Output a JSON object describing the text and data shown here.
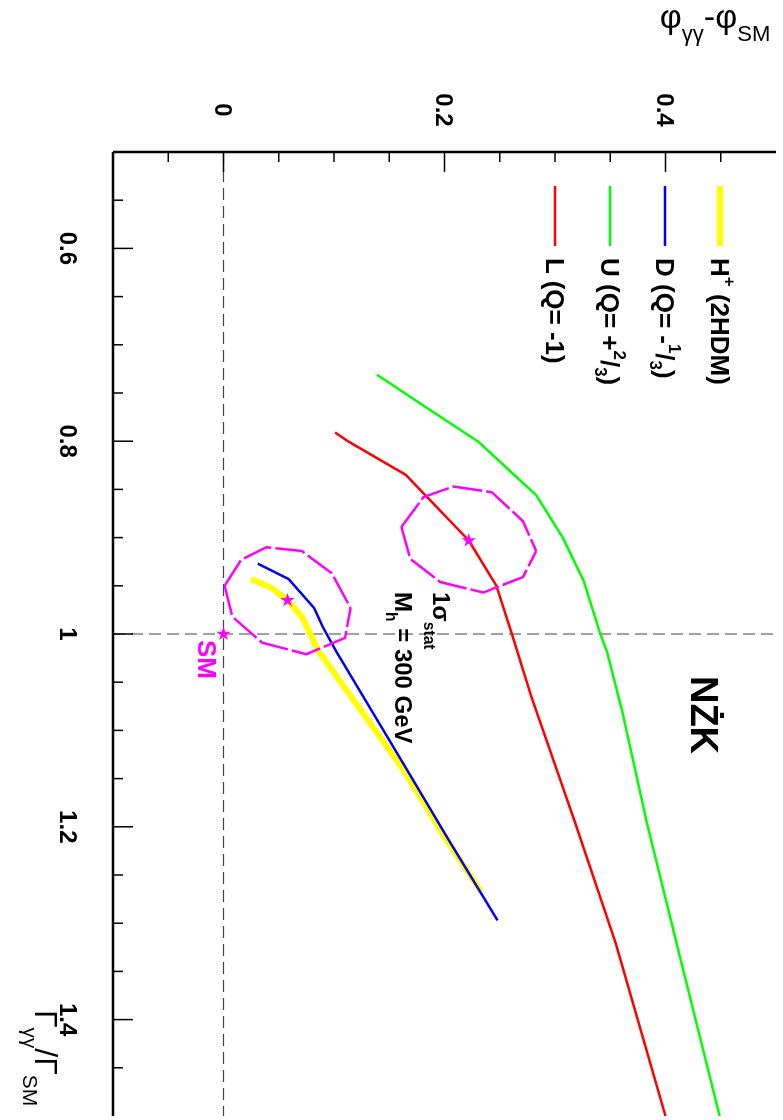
{
  "chart_data": {
    "type": "line",
    "xlabel": "φ$_{γγ}$-φ$_{SM}$",
    "ylabel": "Γ$_{γγ}$/Γ$_{SM}$",
    "xlim": [
      -0.1,
      0.5
    ],
    "ylim": [
      1.5,
      0.5
    ],
    "xticks": [
      {
        "value": -0.05,
        "label": null
      },
      0,
      {
        "value": 0.05,
        "label": null
      },
      {
        "value": 0.1,
        "label": null
      },
      {
        "value": 0.15,
        "label": null
      },
      0.2,
      {
        "value": 0.25,
        "label": null
      },
      {
        "value": 0.3,
        "label": null
      },
      {
        "value": 0.35,
        "label": null
      },
      0.4,
      {
        "value": 0.45,
        "label": null
      }
    ],
    "yticks": [
      {
        "value": 0.55,
        "label": null
      },
      0.6,
      {
        "value": 0.65,
        "label": null
      },
      {
        "value": 0.7,
        "label": null
      },
      {
        "value": 0.75,
        "label": null
      },
      0.8,
      {
        "value": 0.85,
        "label": null
      },
      {
        "value": 0.9,
        "label": null
      },
      {
        "value": 0.95,
        "label": null
      },
      1,
      {
        "value": 1.05,
        "label": null
      },
      {
        "value": 1.1,
        "label": null
      },
      {
        "value": 1.15,
        "label": null
      },
      1.2,
      {
        "value": 1.25,
        "label": null
      },
      {
        "value": 1.3,
        "label": null
      },
      {
        "value": 1.35,
        "label": null
      },
      1.4,
      {
        "value": 1.45,
        "label": null
      }
    ],
    "grid": false,
    "legend": "top right",
    "marker": "none",
    "line_style": "solid",
    "ref_lines": [
      {
        "axis": "y",
        "value": 1,
        "color": "#444444",
        "line_style": "dashed"
      },
      {
        "axis": "x",
        "value": 0,
        "color": "#444444",
        "line_style": "dashed"
      }
    ],
    "annotations": [
      "NŻK",
      "1σ$_{stat}$",
      "M$_{h}$ = 300 GeV",
      {
        "text": "SM",
        "x": 0,
        "y": 1
      }
    ],
    "series": [
      {
        "name": "H$^{+}$  (2HDM)",
        "color": "#ffff00",
        "x": [
          0.025,
          0.043,
          0.058,
          0.071,
          0.086,
          0.163,
          0.202,
          0.233
        ],
        "values": [
          0.943,
          0.952,
          0.965,
          0.982,
          1.018,
          1.141,
          1.214,
          1.267
        ]
      },
      {
        "name": "D  (Q= -$^{1}$/$_{3}$)",
        "color": "#0000ff",
        "x": [
          0.031,
          0.059,
          0.082,
          0.09,
          0.102,
          0.163,
          0.204,
          0.248
        ],
        "values": [
          0.927,
          0.943,
          0.973,
          0.993,
          1.018,
          1.135,
          1.214,
          1.297
        ]
      },
      {
        "name": "U  (Q= +$^{2}$/$_{3}$)",
        "color": "#00ff00",
        "x": [
          0.139,
          0.19,
          0.23,
          0.283,
          0.307,
          0.326,
          0.341,
          0.347,
          0.361,
          0.383,
          0.412,
          0.449
        ],
        "values": [
          0.731,
          0.77,
          0.8,
          0.856,
          0.9,
          0.945,
          1.0,
          1.018,
          1.081,
          1.195,
          1.33,
          1.5
        ]
      },
      {
        "name": "L  (Q= -1)",
        "color": "#ff0000",
        "x": [
          0.101,
          0.114,
          0.165,
          0.222,
          0.247,
          0.261,
          0.278,
          0.318,
          0.355,
          0.4
        ],
        "values": [
          0.791,
          0.801,
          0.835,
          0.903,
          0.95,
          1.0,
          1.063,
          1.195,
          1.321,
          1.5
        ]
      },
      {
        "color": "#ff00ff",
        "line_style": "dashed",
        "x": [
          0.001,
          0.016,
          0.039,
          0.071,
          0.098,
          0.115
        ],
        "values": [
          0.95,
          0.923,
          0.91,
          0.914,
          0.937,
          0.973
        ]
      },
      {
        "color": "#ff00ff",
        "line_style": "dashed",
        "x": [
          0.001,
          0.008,
          0.035,
          0.075,
          0.11,
          0.115
        ],
        "values": [
          0.95,
          0.982,
          1.009,
          1.021,
          1.004,
          0.973
        ]
      },
      {
        "color": "#ff00ff",
        "line_style": "dashed",
        "x": [
          0.161,
          0.181,
          0.208,
          0.243,
          0.271,
          0.283
        ],
        "values": [
          0.889,
          0.858,
          0.847,
          0.853,
          0.883,
          0.914
        ]
      },
      {
        "color": "#ff00ff",
        "line_style": "dashed",
        "x": [
          0.161,
          0.169,
          0.196,
          0.235,
          0.271,
          0.283
        ],
        "values": [
          0.889,
          0.922,
          0.946,
          0.957,
          0.941,
          0.914
        ]
      },
      {
        "type": "scatter",
        "marker": "star",
        "color": "#ff00ff",
        "x": [
          0,
          0.058,
          0.222
        ],
        "values": [
          1.0,
          0.965,
          0.903
        ]
      }
    ]
  }
}
